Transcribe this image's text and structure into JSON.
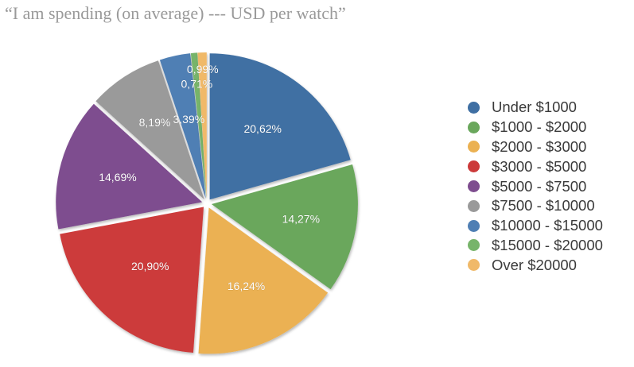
{
  "chart_data": {
    "type": "pie",
    "title": "“I am spending (on average) --- USD per watch”",
    "categories": [
      "Under $1000",
      "$1000 - $2000",
      "$2000 - $3000",
      "$3000 - $5000",
      "$5000 - $7500",
      "$7500 - $10000",
      "$10000 - $15000",
      "$15000 - $20000",
      "Over $20000"
    ],
    "values": [
      20.62,
      14.27,
      16.24,
      20.9,
      14.69,
      8.19,
      3.39,
      0.71,
      0.99
    ],
    "data_labels": [
      "20,62%",
      "14,27%",
      "16,24%",
      "20,90%",
      "14,69%",
      "8,19%",
      "3,39%",
      "0,71%",
      "0,99%"
    ],
    "colors": [
      "#3f6fa3",
      "#6aa75c",
      "#ebb152",
      "#cc3a3a",
      "#7e4d8f",
      "#9a9a9a",
      "#4f7fb4",
      "#77b46a",
      "#f0b969"
    ],
    "legend_position": "right"
  }
}
